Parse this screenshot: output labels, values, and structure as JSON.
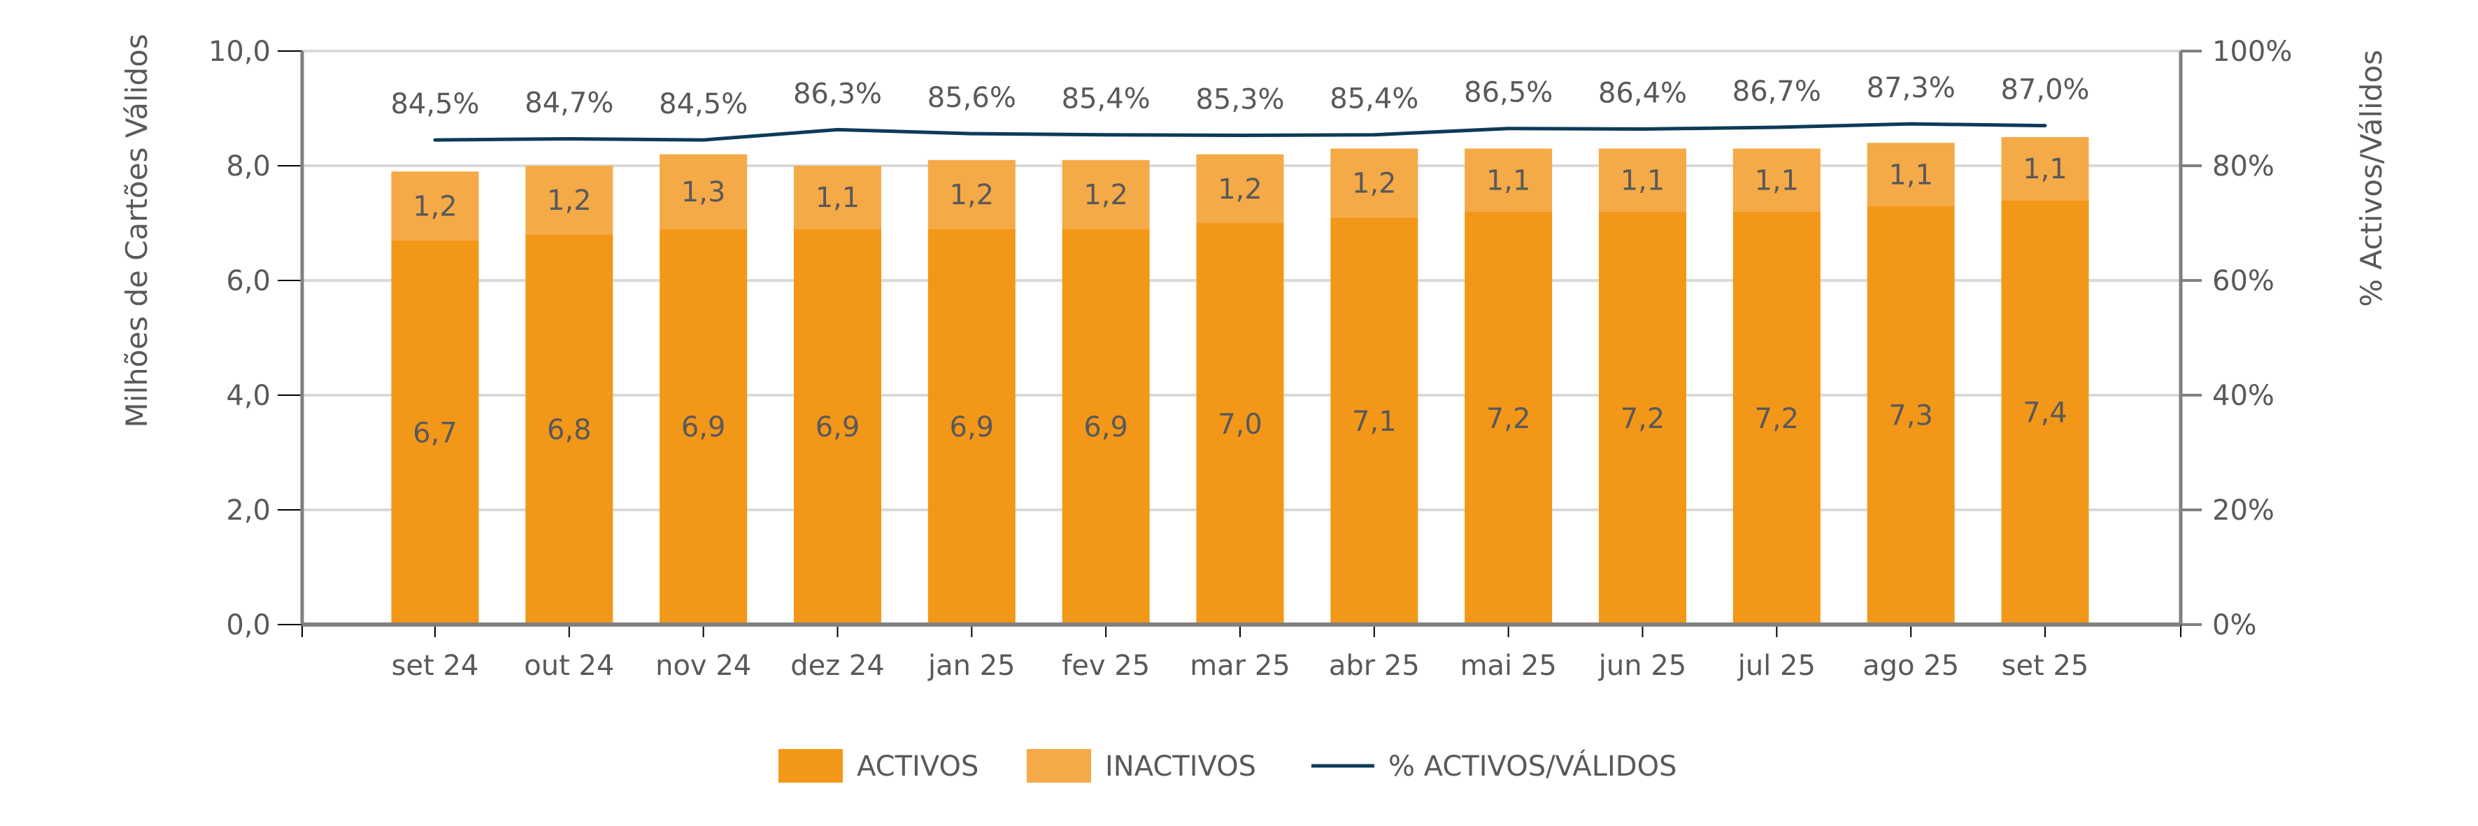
{
  "colors": {
    "activos": "#F39719",
    "inactivos": "#F5AA48",
    "line": "#0D3B58",
    "grid": "#D9D9D9",
    "axis": "#808080",
    "text": "#595959"
  },
  "chart_data": {
    "type": "bar",
    "stacked": true,
    "categories": [
      "set 24",
      "out 24",
      "nov 24",
      "dez 24",
      "jan 25",
      "fev 25",
      "mar 25",
      "abr 25",
      "mai 25",
      "jun 25",
      "jul 25",
      "ago 25",
      "set 25"
    ],
    "series": [
      {
        "name": "ACTIVOS",
        "type": "bar",
        "axis": "left",
        "values": [
          6.7,
          6.8,
          6.9,
          6.9,
          6.9,
          6.9,
          7.0,
          7.1,
          7.2,
          7.2,
          7.2,
          7.3,
          7.4
        ],
        "labels": [
          "6,7",
          "6,8",
          "6,9",
          "6,9",
          "6,9",
          "6,9",
          "7,0",
          "7,1",
          "7,2",
          "7,2",
          "7,2",
          "7,3",
          "7,4"
        ]
      },
      {
        "name": "INACTIVOS",
        "type": "bar",
        "axis": "left",
        "values": [
          1.2,
          1.2,
          1.3,
          1.1,
          1.2,
          1.2,
          1.2,
          1.2,
          1.1,
          1.1,
          1.1,
          1.1,
          1.1
        ],
        "labels": [
          "1,2",
          "1,2",
          "1,3",
          "1,1",
          "1,2",
          "1,2",
          "1,2",
          "1,2",
          "1,1",
          "1,1",
          "1,1",
          "1,1",
          "1,1"
        ]
      },
      {
        "name": "% ACTIVOS/VÁLIDOS",
        "type": "line",
        "axis": "right",
        "values": [
          84.5,
          84.7,
          84.5,
          86.3,
          85.6,
          85.4,
          85.3,
          85.4,
          86.5,
          86.4,
          86.7,
          87.3,
          87.0
        ],
        "labels": [
          "84,5%",
          "84,7%",
          "84,5%",
          "86,3%",
          "85,6%",
          "85,4%",
          "85,3%",
          "85,4%",
          "86,5%",
          "86,4%",
          "86,7%",
          "87,3%",
          "87,0%"
        ]
      }
    ],
    "ylabel": "Milhões de Cartões Válidos",
    "y2label": "% Activos/Válidos",
    "ylim": [
      0,
      10
    ],
    "y2lim": [
      0,
      100
    ],
    "yticks": [
      0,
      2,
      4,
      6,
      8,
      10
    ],
    "ytick_labels": [
      "0,0",
      "2,0",
      "4,0",
      "6,0",
      "8,0",
      "10,0"
    ],
    "y2ticks": [
      0,
      20,
      40,
      60,
      80,
      100
    ],
    "y2tick_labels": [
      "0%",
      "20%",
      "40%",
      "60%",
      "80%",
      "100%"
    ],
    "grid": true,
    "legend": {
      "position": "bottom",
      "entries": [
        "ACTIVOS",
        "INACTIVOS",
        "% ACTIVOS/VÁLIDOS"
      ]
    }
  }
}
